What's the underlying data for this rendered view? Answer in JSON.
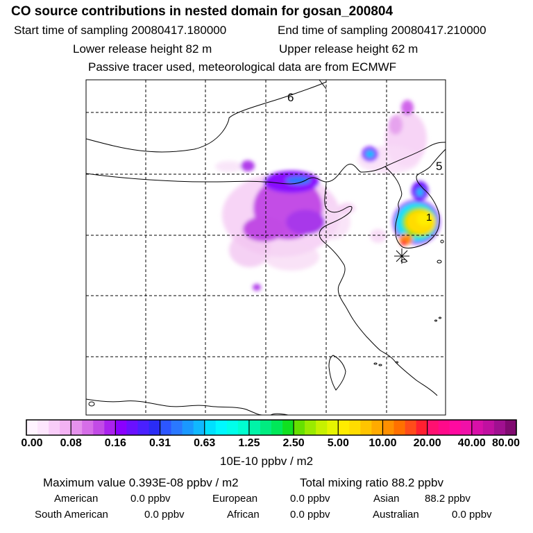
{
  "title": "CO  source contributions in nested domain for gosan_200804",
  "sampling": {
    "start": "Start time of sampling 20080417.180000",
    "end": "End time of sampling 20080417.210000"
  },
  "release": {
    "lower": "Lower release height   82 m",
    "upper": "Upper release height   62 m"
  },
  "note": "Passive tracer used, meteorological data are from ECMWF",
  "map": {
    "contour_labels": [
      "6",
      "5",
      "1"
    ],
    "receptor_marker": "asterisk"
  },
  "colorbar": {
    "ticks": [
      "0.00",
      "0.08",
      "0.16",
      "0.31",
      "0.63",
      "1.25",
      "2.50",
      "5.00",
      "10.00",
      "20.00",
      "40.00",
      "80.00"
    ],
    "unit": "10E-10 ppbv / m2",
    "colors": [
      "#fff4ff",
      "#fde6fd",
      "#f9cdf9",
      "#f3b2f3",
      "#e592ec",
      "#d66ee8",
      "#c24be6",
      "#aa22ee",
      "#8a00ff",
      "#6a10ff",
      "#4a20ff",
      "#2a2cf5",
      "#2c56ff",
      "#2a78ff",
      "#1a98ff",
      "#10b8ff",
      "#00e0ff",
      "#00f8ff",
      "#00ffea",
      "#00ffd0",
      "#00f4a8",
      "#00ec80",
      "#00e858",
      "#10e020",
      "#66e000",
      "#9aea00",
      "#c6f000",
      "#e6f400",
      "#ffec00",
      "#ffdc00",
      "#ffc400",
      "#ffaa00",
      "#ff9000",
      "#ff7000",
      "#ff4c1a",
      "#ff2030",
      "#ff1070",
      "#ff0a8a",
      "#ff0aa0",
      "#f010a8",
      "#d810a8",
      "#c010a0",
      "#a01090",
      "#800a70"
    ]
  },
  "stats": {
    "max_value": "Maximum value  0.393E-08 ppbv / m2",
    "total": "Total mixing ratio      88.2 ppbv"
  },
  "sources": [
    {
      "name": "American",
      "value": "0.0 ppbv"
    },
    {
      "name": "European",
      "value": "0.0 ppbv"
    },
    {
      "name": "Asian",
      "value": "88.2 ppbv"
    },
    {
      "name": "South American",
      "value": "0.0 ppbv"
    },
    {
      "name": "African",
      "value": "0.0 ppbv"
    },
    {
      "name": "Australian",
      "value": "0.0 ppbv"
    }
  ]
}
